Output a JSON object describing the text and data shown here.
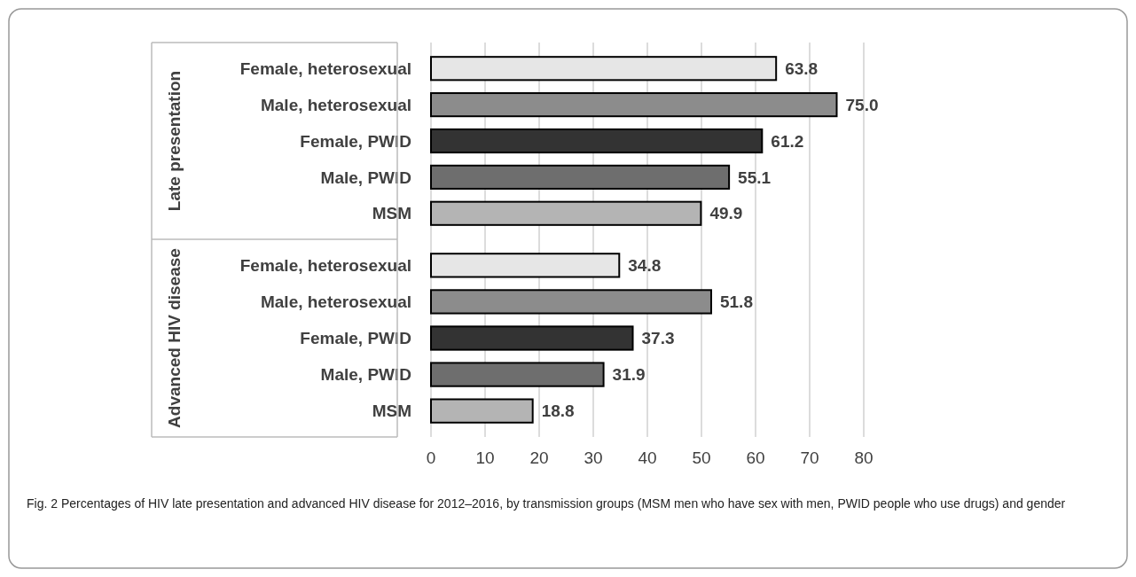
{
  "chart_data": [
    {
      "type": "bar",
      "orientation": "horizontal",
      "ylabel": "Late presentation",
      "categories": [
        "Female, heterosexual",
        "Male, heterosexual",
        "Female, PWID",
        "Male, PWID",
        "MSM"
      ],
      "values": [
        63.8,
        75.0,
        61.2,
        55.1,
        49.9
      ],
      "value_labels": [
        "63.8",
        "75.0",
        "61.2",
        "55.1",
        "49.9"
      ],
      "colors": [
        "#e6e6e6",
        "#8c8c8c",
        "#333333",
        "#6e6e6e",
        "#b4b4b4"
      ],
      "xlim": [
        0,
        80
      ],
      "xticks": [
        0,
        10,
        20,
        30,
        40,
        50,
        60,
        70,
        80
      ],
      "grid": "x",
      "tick_labels": "y"
    },
    {
      "type": "bar",
      "orientation": "horizontal",
      "ylabel": "Advanced HIV disease",
      "categories": [
        "Female, heterosexual",
        "Male, heterosexual",
        "Female, PWID",
        "Male, PWID",
        "MSM"
      ],
      "values": [
        34.8,
        51.8,
        37.3,
        31.9,
        18.8
      ],
      "value_labels": [
        "34.8",
        "51.8",
        "37.3",
        "31.9",
        "18.8"
      ],
      "colors": [
        "#e6e6e6",
        "#8c8c8c",
        "#333333",
        "#6e6e6e",
        "#b4b4b4"
      ],
      "xlim": [
        0,
        80
      ],
      "xticks": [
        0,
        10,
        20,
        30,
        40,
        50,
        60,
        70,
        80
      ],
      "grid": "x",
      "annotations": [
        "Fig. 2  Percentages of HIV late presentation and advanced HIV disease for 2012–2016, by transmission groups (MSM men who have sex with men, PWID people who use drugs) and gender"
      ]
    }
  ]
}
